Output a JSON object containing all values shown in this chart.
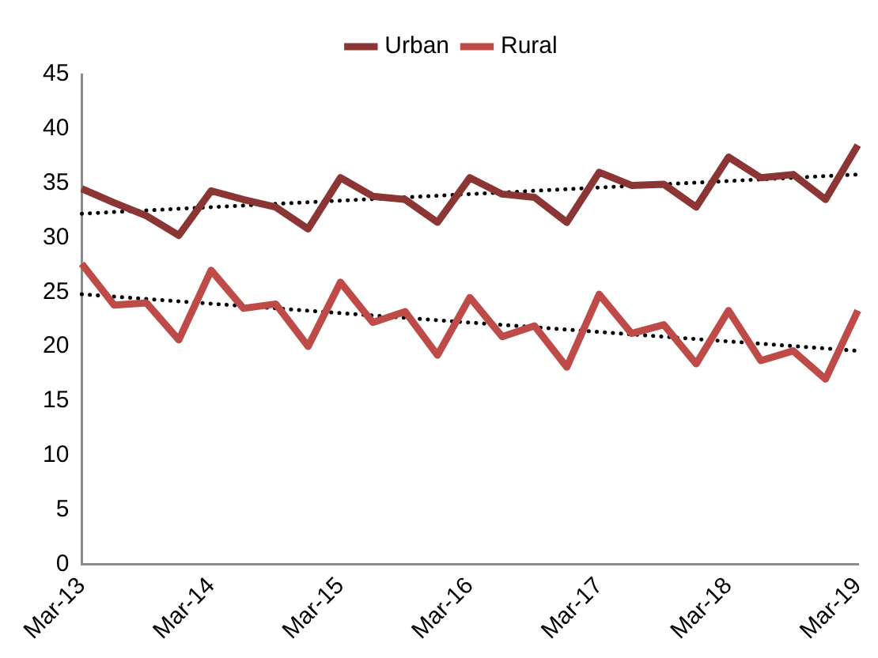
{
  "chart_data": {
    "type": "line",
    "categories": [
      "Mar-13",
      null,
      null,
      null,
      "Mar-14",
      null,
      null,
      null,
      "Mar-15",
      null,
      null,
      null,
      "Mar-16",
      null,
      null,
      null,
      "Mar-17",
      null,
      null,
      null,
      "Mar-18",
      null,
      null,
      null,
      "Mar-19"
    ],
    "series": [
      {
        "name": "Urban",
        "color": "#8b3535",
        "values": [
          34.5,
          33.2,
          32,
          30.2,
          34.3,
          33.5,
          32.8,
          30.8,
          35.5,
          33.8,
          33.5,
          31.4,
          35.5,
          34,
          33.7,
          31.4,
          36,
          34.8,
          34.9,
          32.8,
          37.4,
          35.5,
          35.8,
          33.5,
          38.5
        ]
      },
      {
        "name": "Rural",
        "color": "#be4b48",
        "values": [
          27.6,
          23.8,
          24,
          20.6,
          27,
          23.5,
          23.9,
          20,
          25.9,
          22.2,
          23.2,
          19.2,
          24.5,
          20.9,
          21.9,
          18.1,
          24.8,
          21.2,
          22,
          18.4,
          23.3,
          18.7,
          19.6,
          17,
          23.3
        ]
      },
      {
        "type": "line",
        "color": "#000000",
        "line_style": "dotted",
        "x": [
          "Mar-13",
          "Mar-19"
        ],
        "values": [
          32.2,
          35.8
        ]
      },
      {
        "type": "line",
        "color": "#000000",
        "line_style": "dotted",
        "x": [
          "Mar-13",
          "Mar-19"
        ],
        "values": [
          24.8,
          19.6
        ]
      }
    ],
    "ylim": [
      0,
      45
    ],
    "yticks": [
      0,
      5,
      10,
      15,
      20,
      25,
      30,
      35,
      40,
      45
    ],
    "grid": false,
    "legend": "top",
    "marker": "none",
    "line_style": "solid"
  }
}
